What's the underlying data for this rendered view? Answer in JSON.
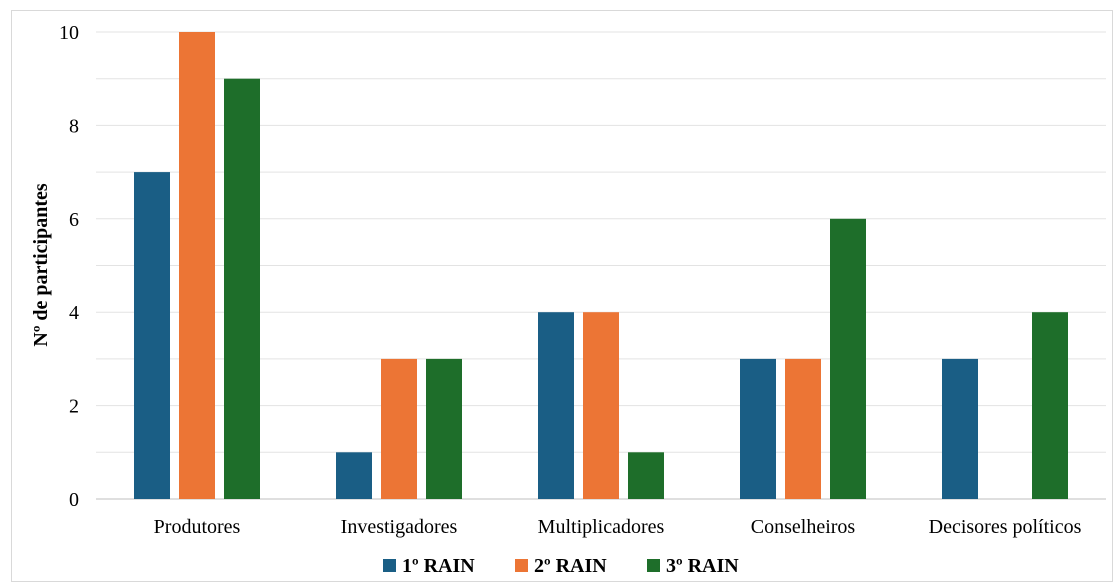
{
  "chart_data": {
    "type": "bar",
    "title": "",
    "xlabel": "",
    "ylabel": "Nº de participantes",
    "ylim": [
      0,
      10
    ],
    "yticks": [
      0,
      2,
      4,
      6,
      8,
      10
    ],
    "grid": true,
    "legend_position": "bottom",
    "categories": [
      "Produtores",
      "Investigadores",
      "Multiplicadores",
      "Conselheiros",
      "Decisores políticos"
    ],
    "series": [
      {
        "name": "1º RAIN",
        "color": "#1a5e85",
        "values": [
          7,
          1,
          4,
          3,
          3
        ]
      },
      {
        "name": "2º RAIN",
        "color": "#ec7535",
        "values": [
          10,
          3,
          4,
          3,
          0
        ]
      },
      {
        "name": "3º RAIN",
        "color": "#1e6e2a",
        "values": [
          9,
          3,
          1,
          6,
          4
        ]
      }
    ]
  }
}
